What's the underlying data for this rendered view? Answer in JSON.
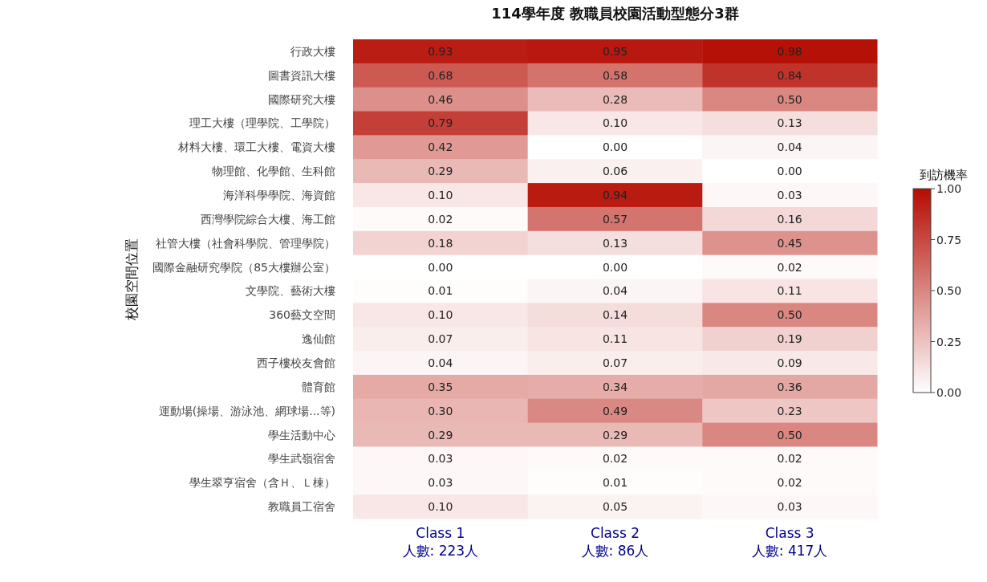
{
  "chart_data": {
    "type": "heatmap",
    "title": "114學年度 教職員校園活動型態分3群",
    "ylabel": "校園空間位置",
    "clabel": "到訪機率",
    "categories": [
      "Class 1\n人數: 223人",
      "Class 2\n人數: 86人",
      "Class 3\n人數: 417人"
    ],
    "y_categories": [
      "行政大樓",
      "圖書資訊大樓",
      "國際研究大樓",
      "理工大樓（理學院、工學院）",
      "材料大樓、環工大樓、電資大樓",
      "物理館、化學館、生科館",
      "海洋科學學院、海資館",
      "西灣學院綜合大樓、海工館",
      "社管大樓（社會科學院、管理學院）",
      "國際金融研究學院（85大樓辦公室）",
      "文學院、藝術大樓",
      "360藝文空間",
      "逸仙館",
      "西子樓校友會館",
      "體育館",
      "運動場(操場、游泳池、網球場...等)",
      "學生活動中心",
      "學生武嶺宿舍",
      "學生翠亨宿舍（含Ｈ、Ｌ棟）",
      "教職員工宿舍"
    ],
    "cells": [
      [
        0.93,
        0.95,
        0.98
      ],
      [
        0.68,
        0.58,
        0.84
      ],
      [
        0.46,
        0.28,
        0.5
      ],
      [
        0.79,
        0.1,
        0.13
      ],
      [
        0.42,
        0.0,
        0.04
      ],
      [
        0.29,
        0.06,
        0.0
      ],
      [
        0.1,
        0.94,
        0.03
      ],
      [
        0.02,
        0.57,
        0.16
      ],
      [
        0.18,
        0.13,
        0.45
      ],
      [
        0.0,
        0.0,
        0.02
      ],
      [
        0.01,
        0.04,
        0.11
      ],
      [
        0.1,
        0.14,
        0.5
      ],
      [
        0.07,
        0.11,
        0.19
      ],
      [
        0.04,
        0.07,
        0.09
      ],
      [
        0.35,
        0.34,
        0.36
      ],
      [
        0.3,
        0.49,
        0.23
      ],
      [
        0.29,
        0.29,
        0.5
      ],
      [
        0.03,
        0.02,
        0.02
      ],
      [
        0.03,
        0.01,
        0.02
      ],
      [
        0.1,
        0.05,
        0.03
      ]
    ],
    "cell_labels": [
      [
        "0.93",
        "0.95",
        "0.98"
      ],
      [
        "0.68",
        "0.58",
        "0.84"
      ],
      [
        "0.46",
        "0.28",
        "0.50"
      ],
      [
        "0.79",
        "0.10",
        "0.13"
      ],
      [
        "0.42",
        "0.00",
        "0.04"
      ],
      [
        "0.29",
        "0.06",
        "0.00"
      ],
      [
        "0.10",
        "0.94",
        "0.03"
      ],
      [
        "0.02",
        "0.57",
        "0.16"
      ],
      [
        "0.18",
        "0.13",
        "0.45"
      ],
      [
        "0.00",
        "0.00",
        "0.02"
      ],
      [
        "0.01",
        "0.04",
        "0.11"
      ],
      [
        "0.10",
        "0.14",
        "0.50"
      ],
      [
        "0.07",
        "0.11",
        "0.19"
      ],
      [
        "0.04",
        "0.07",
        "0.09"
      ],
      [
        "0.35",
        "0.34",
        "0.36"
      ],
      [
        "0.30",
        "0.49",
        "0.23"
      ],
      [
        "0.29",
        "0.29",
        "0.50"
      ],
      [
        "0.03",
        "0.02",
        "0.02"
      ],
      [
        "0.03",
        "0.01",
        "0.02"
      ],
      [
        "0.10",
        "0.05",
        "0.03"
      ]
    ],
    "clim": [
      0,
      1
    ],
    "cticks": [
      {
        "value": 0,
        "label": "0.00"
      },
      {
        "value": 0.25,
        "label": "0.25"
      },
      {
        "value": 0.5,
        "label": "0.50"
      },
      {
        "value": 0.75,
        "label": "0.75"
      },
      {
        "value": 1,
        "label": "1.00"
      }
    ]
  }
}
